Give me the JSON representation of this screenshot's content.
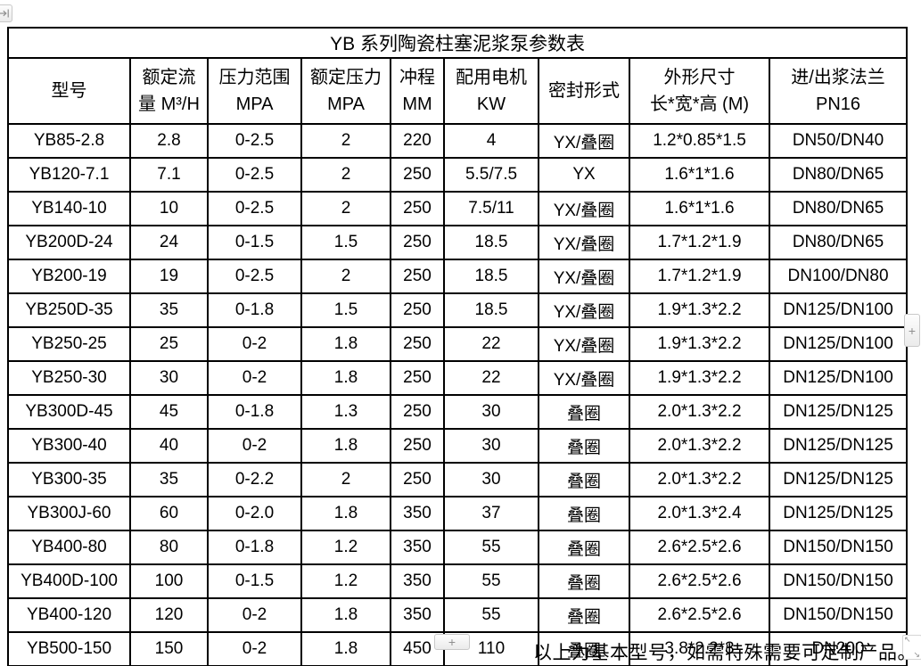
{
  "table": {
    "title": "YB 系列陶瓷柱塞泥浆泵参数表",
    "headers": [
      [
        "型号"
      ],
      [
        "额定流",
        "量 M³/H"
      ],
      [
        "压力范围",
        "MPA"
      ],
      [
        "额定压力",
        "MPA"
      ],
      [
        "冲程",
        "MM"
      ],
      [
        "配用电机",
        "KW"
      ],
      [
        "密封形式"
      ],
      [
        "外形尺寸",
        "长*宽*高 (M)"
      ],
      [
        "进/出浆法兰",
        "PN16"
      ]
    ],
    "rows": [
      [
        "YB85-2.8",
        "2.8",
        "0-2.5",
        "2",
        "220",
        "4",
        "YX/叠圈",
        "1.2*0.85*1.5",
        "DN50/DN40"
      ],
      [
        "YB120-7.1",
        "7.1",
        "0-2.5",
        "2",
        "250",
        "5.5/7.5",
        "YX",
        "1.6*1*1.6",
        "DN80/DN65"
      ],
      [
        "YB140-10",
        "10",
        "0-2.5",
        "2",
        "250",
        "7.5/11",
        "YX/叠圈",
        "1.6*1*1.6",
        "DN80/DN65"
      ],
      [
        "YB200D-24",
        "24",
        "0-1.5",
        "1.5",
        "250",
        "18.5",
        "YX/叠圈",
        "1.7*1.2*1.9",
        "DN80/DN65"
      ],
      [
        "YB200-19",
        "19",
        "0-2.5",
        "2",
        "250",
        "18.5",
        "YX/叠圈",
        "1.7*1.2*1.9",
        "DN100/DN80"
      ],
      [
        "YB250D-35",
        "35",
        "0-1.8",
        "1.5",
        "250",
        "18.5",
        "YX/叠圈",
        "1.9*1.3*2.2",
        "DN125/DN100"
      ],
      [
        "YB250-25",
        "25",
        "0-2",
        "1.8",
        "250",
        "22",
        "YX/叠圈",
        "1.9*1.3*2.2",
        "DN125/DN100"
      ],
      [
        "YB250-30",
        "30",
        "0-2",
        "1.8",
        "250",
        "22",
        "YX/叠圈",
        "1.9*1.3*2.2",
        "DN125/DN100"
      ],
      [
        "YB300D-45",
        "45",
        "0-1.8",
        "1.3",
        "250",
        "30",
        "叠圈",
        "2.0*1.3*2.2",
        "DN125/DN125"
      ],
      [
        "YB300-40",
        "40",
        "0-2",
        "1.8",
        "250",
        "30",
        "叠圈",
        "2.0*1.3*2.2",
        "DN125/DN125"
      ],
      [
        "YB300-35",
        "35",
        "0-2.2",
        "2",
        "250",
        "30",
        "叠圈",
        "2.0*1.3*2.2",
        "DN125/DN125"
      ],
      [
        "YB300J-60",
        "60",
        "0-2.0",
        "1.8",
        "350",
        "37",
        "叠圈",
        "2.0*1.3*2.4",
        "DN125/DN125"
      ],
      [
        "YB400-80",
        "80",
        "0-1.8",
        "1.2",
        "350",
        "55",
        "叠圈",
        "2.6*2.5*2.6",
        "DN150/DN150"
      ],
      [
        "YB400D-100",
        "100",
        "0-1.5",
        "1.2",
        "350",
        "55",
        "叠圈",
        "2.6*2.5*2.6",
        "DN150/DN150"
      ],
      [
        "YB400-120",
        "120",
        "0-2",
        "1.8",
        "350",
        "55",
        "叠圈",
        "2.6*2.5*2.6",
        "DN150/DN150"
      ],
      [
        "YB500-150",
        "150",
        "0-2",
        "1.8",
        "450",
        "110",
        "叠圈",
        "3.8*2.2*3",
        "DN200"
      ]
    ]
  },
  "footer": {
    "note": "以上为基本型号，如需特殊需要可定制产品。"
  },
  "controls": {
    "add_column_label": "+",
    "add_row_label": "+",
    "resize_arrow_nw": "↖",
    "resize_arrow_se": "↘"
  },
  "colors": {
    "table_border": "#000000",
    "text": "#000000",
    "control_text": "#8f8f8f",
    "control_border": "#c9c9c9"
  }
}
